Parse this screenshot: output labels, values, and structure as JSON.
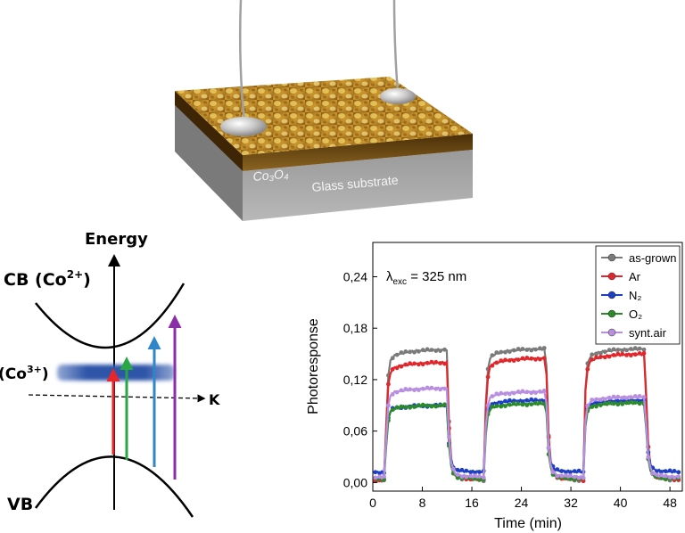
{
  "device": {
    "film_label": "Co₃O₄",
    "substrate_label": "Glass substrate"
  },
  "band_diagram": {
    "energy_axis_label": "Energy",
    "k_axis_label": "K",
    "cb": {
      "prefix": "CB (Co",
      "sup": "2+",
      "suffix": ")"
    },
    "defect": {
      "prefix": "(Co",
      "sup": "3+",
      "suffix": ")"
    },
    "vb_label": "VB",
    "transition_colors": [
      "#e8262a",
      "#27a844",
      "#2f86c8",
      "#8b2fa8"
    ]
  },
  "chart_data": {
    "type": "line",
    "xlabel": "Time (min)",
    "ylabel": "Photoresponse",
    "xlim": [
      0,
      50
    ],
    "ylim": [
      -0.01,
      0.28
    ],
    "xticks": [
      0,
      8,
      16,
      24,
      32,
      40,
      48
    ],
    "yticks": [
      "0,00",
      "0,06",
      "0,12",
      "0,18",
      "0,24"
    ],
    "ytick_values": [
      0.0,
      0.06,
      0.12,
      0.18,
      0.24
    ],
    "annotation": {
      "symbol": "λ",
      "sub": "exc",
      "text": " = 325 nm"
    },
    "legend_position": "top-right",
    "on_intervals": [
      [
        2,
        12
      ],
      [
        18,
        28
      ],
      [
        34,
        44
      ]
    ],
    "series": [
      {
        "name": "as-grown",
        "color": "#7a7a7a",
        "plateaus": [
          0.155,
          0.156,
          0.156
        ],
        "base": 0.002
      },
      {
        "name": "Ar",
        "color": "#e0272b",
        "plateaus": [
          0.14,
          0.145,
          0.15
        ],
        "base": 0.003
      },
      {
        "name": "N₂",
        "color": "#1d3fc4",
        "plateaus": [
          0.09,
          0.096,
          0.096
        ],
        "base": 0.012
      },
      {
        "name": "O₂",
        "color": "#2a8a2a",
        "plateaus": [
          0.09,
          0.092,
          0.093
        ],
        "base": 0.004
      },
      {
        "name": "synt.air",
        "color": "#b88ee0",
        "plateaus": [
          0.11,
          0.106,
          0.1
        ],
        "base": 0.006
      }
    ]
  }
}
